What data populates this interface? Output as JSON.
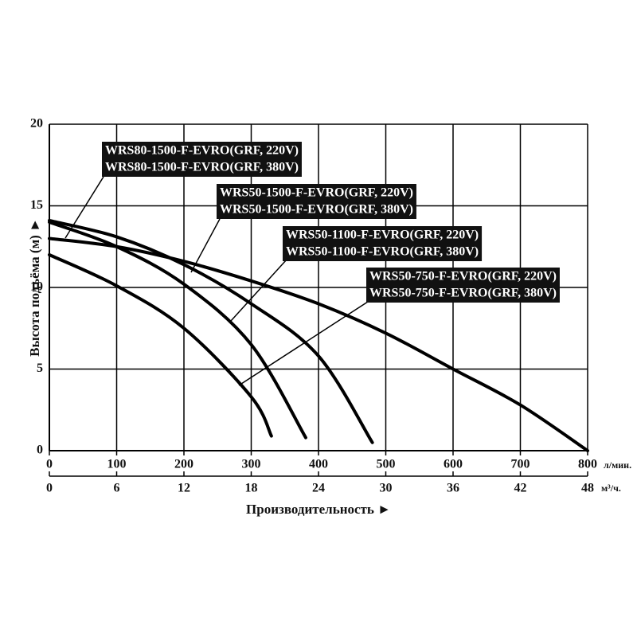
{
  "chart_data": {
    "type": "line",
    "xlabel": "Производительность ►",
    "ylabel": "Высота подъёма (м) ►",
    "xunit": "л/мин.",
    "x2unit": "м³/ч.",
    "xlim": [
      0,
      800
    ],
    "xticks": [
      0,
      100,
      200,
      300,
      400,
      500,
      600,
      700,
      800
    ],
    "x2lim": [
      0,
      48
    ],
    "x2ticks": [
      0,
      6,
      12,
      18,
      24,
      30,
      36,
      42,
      48
    ],
    "ylim": [
      0,
      20
    ],
    "yticks": [
      0,
      5,
      10,
      15,
      20
    ],
    "grid": true,
    "series": [
      {
        "labels": [
          "WRS80-1500-F-EVRO(GRF, 220V)",
          "WRS80-1500-F-EVRO(GRF, 380V)"
        ],
        "color": "#000000",
        "x": [
          0,
          100,
          200,
          300,
          400,
          500,
          600,
          700,
          800
        ],
        "values": [
          13,
          12.5,
          11.6,
          10.4,
          9,
          7.2,
          5,
          2.8,
          0
        ]
      },
      {
        "labels": [
          "WRS50-1500-F-EVRO(GRF, 220V)",
          "WRS50-1500-F-EVRO(GRF, 380V)"
        ],
        "color": "#000000",
        "x": [
          0,
          100,
          200,
          300,
          400,
          480
        ],
        "values": [
          14.1,
          13.1,
          11.4,
          9,
          5.8,
          0.5
        ]
      },
      {
        "labels": [
          "WRS50-1100-F-EVRO(GRF, 220V)",
          "WRS50-1100-F-EVRO(GRF, 380V)"
        ],
        "color": "#000000",
        "x": [
          0,
          100,
          200,
          300,
          381
        ],
        "values": [
          14,
          12.5,
          10.2,
          6.5,
          0.8
        ]
      },
      {
        "labels": [
          "WRS50-750-F-EVRO(GRF, 220V)",
          "WRS50-750-F-EVRO(GRF, 380V)"
        ],
        "color": "#000000",
        "x": [
          0,
          100,
          200,
          300,
          330
        ],
        "values": [
          12,
          10.1,
          7.5,
          3.3,
          0.9
        ]
      }
    ]
  }
}
